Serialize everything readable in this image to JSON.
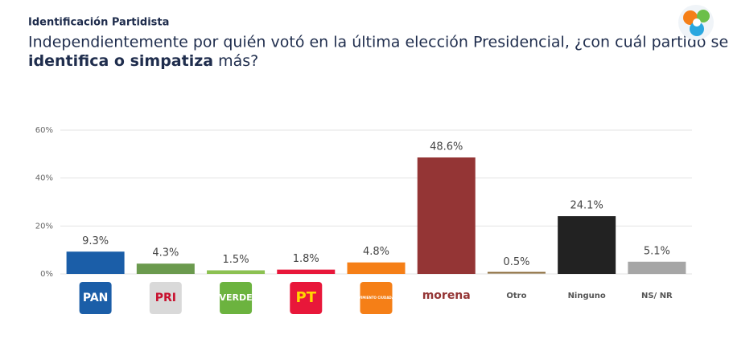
{
  "chart_data": {
    "type": "bar",
    "title": "Identificación Partidista",
    "subtitle_parts": [
      "Independientemente por quién votó en la última elección Presidencial, ¿con cuál partido se ",
      "identifica o simpatiza",
      " más?"
    ],
    "categories": [
      "PAN",
      "PRI",
      "VERDE",
      "PT",
      "MOVIMIENTO CIUDADANO",
      "morena",
      "Otro",
      "Ninguno",
      "NS/ NR"
    ],
    "values": [
      9.3,
      4.3,
      1.5,
      1.8,
      4.8,
      48.6,
      0.5,
      24.1,
      5.1
    ],
    "value_labels": [
      "9.3%",
      "4.3%",
      "1.5%",
      "1.8%",
      "4.8%",
      "48.6%",
      "0.5%",
      "24.1%",
      "5.1%"
    ],
    "colors": [
      "#1b5ea8",
      "#6b9a4e",
      "#8cc152",
      "#e8173a",
      "#f57f17",
      "#943535",
      "#8b6b3a",
      "#222222",
      "#a6a6a6"
    ],
    "ylim": [
      0,
      60
    ],
    "yticks": [
      {
        "value": 0,
        "label": "0%"
      },
      {
        "value": 20,
        "label": "20%"
      },
      {
        "value": 40,
        "label": "40%"
      },
      {
        "value": 60,
        "label": "60%"
      }
    ],
    "grid": true
  }
}
